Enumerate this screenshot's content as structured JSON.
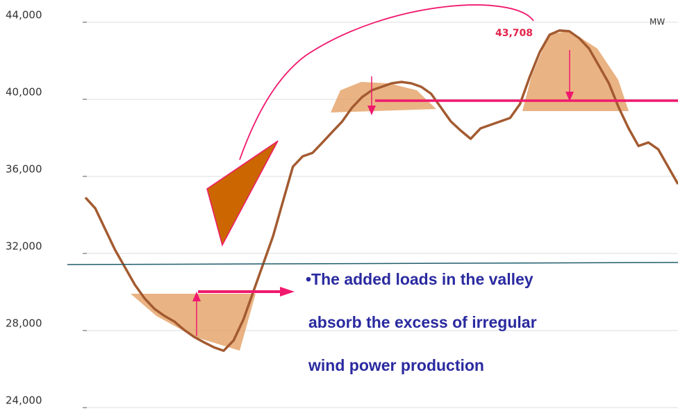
{
  "chart_data": {
    "type": "line",
    "unit": "MW",
    "peak_label": "43,708",
    "annotation_lines": [
      "•The added loads in the  valley",
      "absorb the excess of irregular",
      "wind power production"
    ],
    "series": [
      {
        "color": "#a35a30",
        "values": [
          34900,
          34340,
          33260,
          32180,
          31280,
          30380,
          29660,
          29120,
          28760,
          28470,
          28030,
          27670,
          27390,
          27130,
          26950,
          27490,
          28580,
          30020,
          31460,
          32900,
          34700,
          36500,
          37040,
          37220,
          37760,
          38310,
          38850,
          39570,
          40110,
          40470,
          40650,
          40830,
          40900,
          40830,
          40650,
          40290,
          39570,
          38850,
          38380,
          37950,
          38490,
          38670,
          38850,
          39030,
          39750,
          41190,
          42450,
          43350,
          43570,
          43530,
          43170,
          42630,
          41730,
          40830,
          39570,
          38490,
          37580,
          37760,
          37400,
          36500,
          35600
        ]
      }
    ],
    "ylim": [
      24000,
      44000
    ],
    "yticks": [
      {
        "value": 24000,
        "label": "24,000"
      },
      {
        "value": 28000,
        "label": "28,000"
      },
      {
        "value": 32000,
        "label": "32,000"
      },
      {
        "value": 36000,
        "label": "36,000"
      },
      {
        "value": 40000,
        "label": "40,000"
      },
      {
        "value": 44000,
        "label": "44,000"
      }
    ],
    "grid": true
  }
}
